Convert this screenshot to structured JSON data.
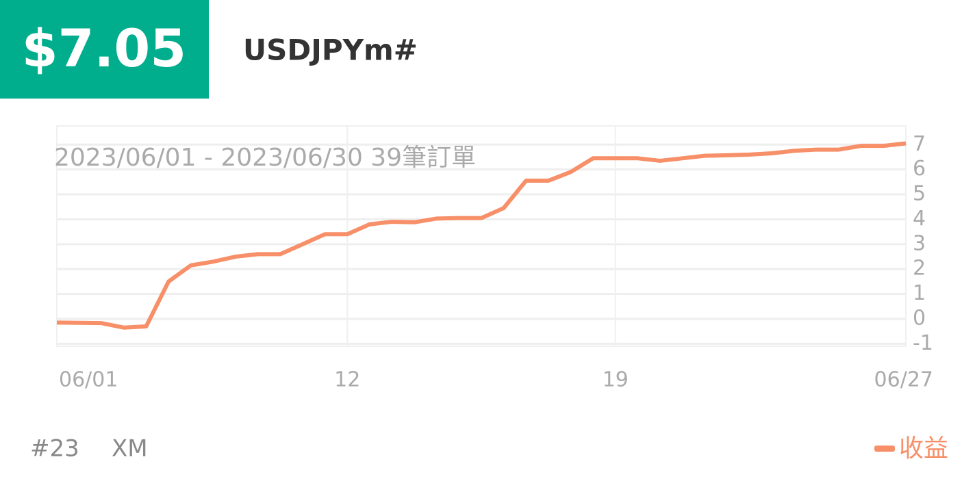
{
  "header": {
    "total": "$7.05",
    "symbol": "USDJPYm#"
  },
  "chart_data": {
    "type": "line",
    "subtitle": "2023/06/01 - 2023/06/30  39筆訂單",
    "categories": [
      "06/01",
      null,
      null,
      null,
      null,
      null,
      null,
      null,
      null,
      null,
      null,
      null,
      null,
      "12",
      null,
      null,
      null,
      null,
      null,
      null,
      null,
      null,
      null,
      null,
      null,
      "19",
      null,
      null,
      null,
      null,
      null,
      null,
      null,
      null,
      null,
      null,
      null,
      null,
      "06/27"
    ],
    "series": [
      {
        "name": "收益",
        "color": "#f78f68",
        "values": [
          -0.15,
          -0.16,
          -0.17,
          -0.35,
          -0.3,
          1.5,
          2.15,
          2.3,
          2.5,
          2.6,
          2.6,
          3.0,
          3.4,
          3.4,
          3.8,
          3.9,
          3.88,
          4.03,
          4.05,
          4.05,
          4.45,
          5.55,
          5.55,
          5.9,
          6.45,
          6.45,
          6.45,
          6.35,
          6.45,
          6.55,
          6.57,
          6.6,
          6.65,
          6.75,
          6.8,
          6.8,
          6.95,
          6.95,
          7.05
        ]
      }
    ],
    "ylim": [
      -1.1,
      7.75
    ],
    "yticks": [
      -1,
      0,
      1,
      2,
      3,
      4,
      5,
      6,
      7
    ],
    "grid": true,
    "legend": "bottom-right"
  },
  "footer": {
    "rank": "#23",
    "broker": "XM"
  }
}
